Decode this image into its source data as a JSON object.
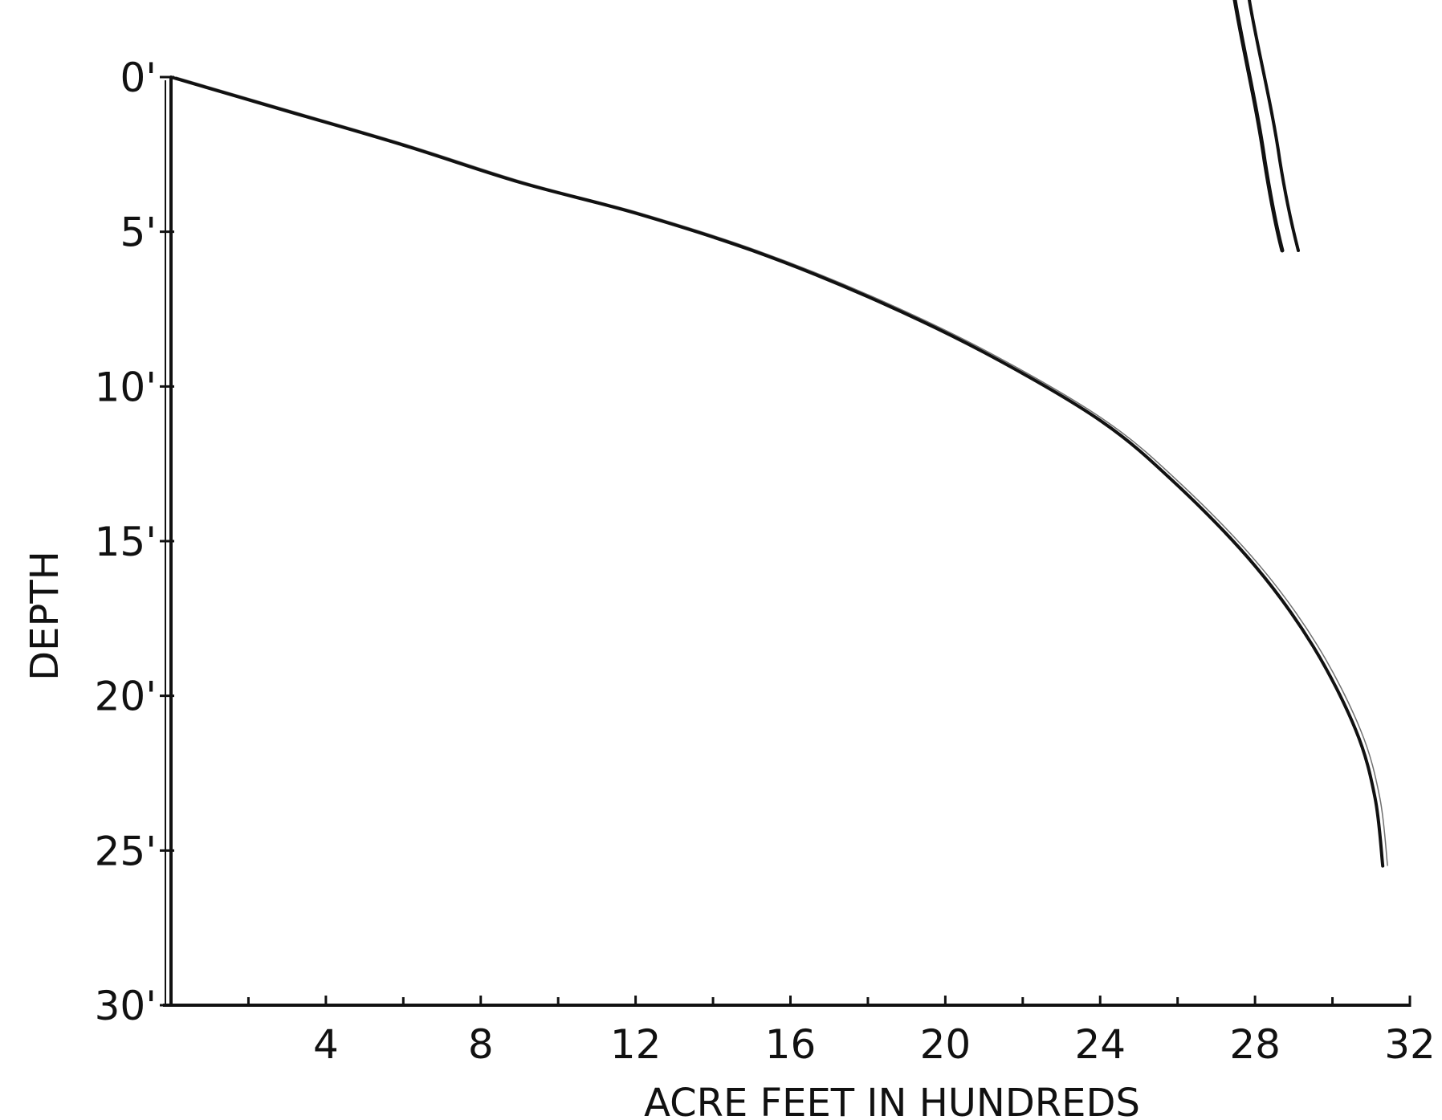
{
  "chart_data": {
    "type": "line",
    "title": "",
    "xlabel": "ACRE FEET IN HUNDREDS",
    "ylabel": "DEPTH",
    "xlim": [
      0,
      32
    ],
    "ylim": [
      0,
      30
    ],
    "y_inverted": true,
    "grid": false,
    "x_ticks": [
      {
        "value": 4,
        "label": "4"
      },
      {
        "value": 8,
        "label": "8"
      },
      {
        "value": 12,
        "label": "12"
      },
      {
        "value": 16,
        "label": "16"
      },
      {
        "value": 20,
        "label": "20"
      },
      {
        "value": 24,
        "label": "24"
      },
      {
        "value": 28,
        "label": "28"
      },
      {
        "value": 32,
        "label": "32"
      }
    ],
    "x_minor_ticks": [
      2,
      6,
      10,
      14,
      18,
      22,
      26,
      30
    ],
    "y_ticks": [
      {
        "value": 0,
        "label": "0'"
      },
      {
        "value": 5,
        "label": "5'"
      },
      {
        "value": 10,
        "label": "10'"
      },
      {
        "value": 15,
        "label": "15'"
      },
      {
        "value": 20,
        "label": "20'"
      },
      {
        "value": 25,
        "label": "25'"
      },
      {
        "value": 30,
        "label": "30'"
      }
    ],
    "series": [
      {
        "x": [
          0,
          3,
          6,
          9,
          12,
          15,
          18,
          21,
          24,
          26,
          28,
          29.5,
          30.6,
          31.1,
          31.3
        ],
        "y": [
          0,
          1.1,
          2.2,
          3.4,
          4.4,
          5.6,
          7.1,
          8.9,
          11.1,
          13.2,
          15.8,
          18.4,
          21.1,
          23.3,
          25.5
        ]
      }
    ],
    "colors": {
      "line": "#111111",
      "axis": "#111111",
      "background": "#ffffff"
    }
  }
}
